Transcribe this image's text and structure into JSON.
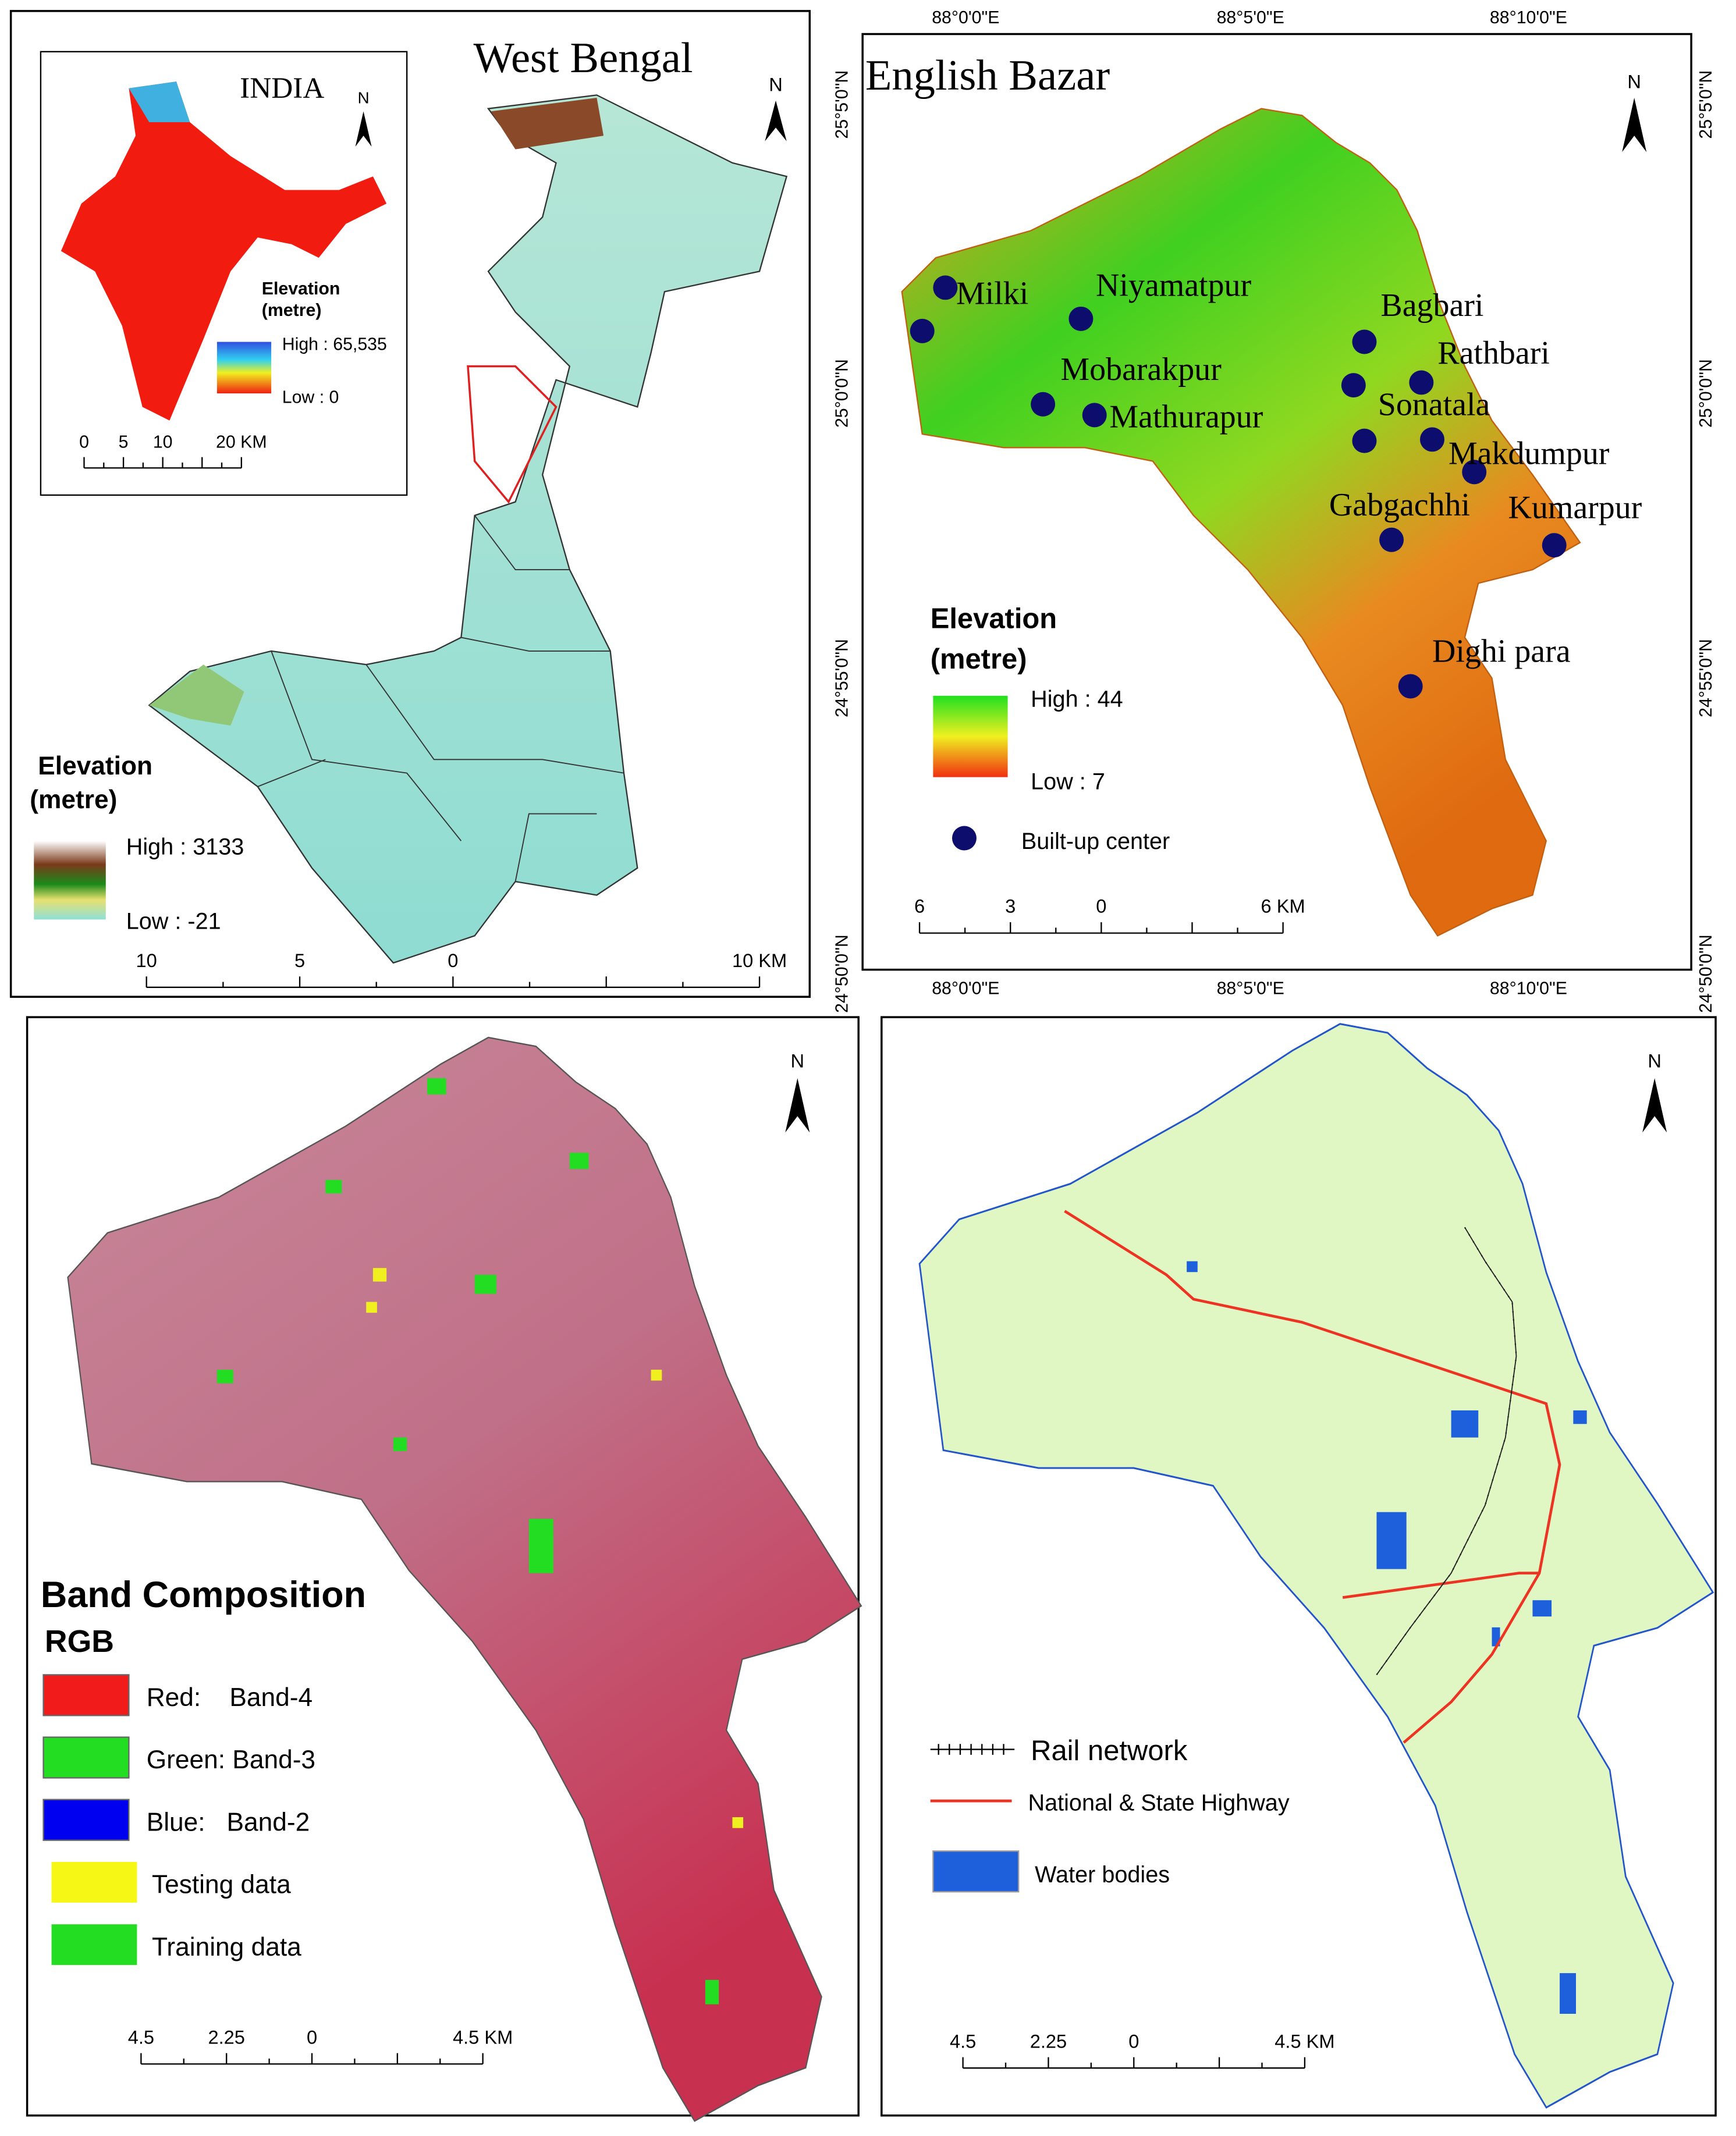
{
  "west_bengal": {
    "title": "West Bengal",
    "north": "N",
    "inset": {
      "title": "INDIA",
      "north": "N",
      "legend_title": [
        "Elevation",
        "(metre)"
      ],
      "high": "High : 65,535",
      "low": "Low : 0",
      "scale": [
        "0",
        "5",
        "10",
        "20 KM"
      ]
    },
    "legend_title": [
      "Elevation",
      "(metre)"
    ],
    "high": "High : 3133",
    "low": "Low : -21",
    "scale": [
      "10",
      "5",
      "0",
      "10 KM"
    ]
  },
  "english_bazar": {
    "title": "English Bazar",
    "north": "N",
    "top_ticks": [
      "88°0'0\"E",
      "88°5'0\"E",
      "88°10'0\"E"
    ],
    "bottom_ticks": [
      "88°0'0\"E",
      "88°5'0\"E",
      "88°10'0\"E"
    ],
    "left_ticks": [
      "25°5'0\"N",
      "25°0'0\"N",
      "24°55'0\"N",
      "24°50'0\"N"
    ],
    "right_ticks": [
      "25°5'0\"N",
      "25°0'0\"N",
      "24°55'0\"N",
      "24°50'0\"N"
    ],
    "places": [
      "Milki",
      "Niyamatpur",
      "Bagbari",
      "Rathbari",
      "Mobarakpur",
      "Mathurapur",
      "Sonatala",
      "Makdumpur",
      "Gabgachhi",
      "Kumarpur",
      "Dighi para"
    ],
    "legend_title": [
      "Elevation",
      "(metre)"
    ],
    "high": "High : 44",
    "low": "Low : 7",
    "builtup": "Built-up center",
    "scale": [
      "6",
      "3",
      "0",
      "6 KM"
    ]
  },
  "band_composition": {
    "title": "Band Composition",
    "subtitle": "RGB",
    "north": "N",
    "items": [
      "Red:    Band-4",
      "Green: Band-3",
      "Blue:   Band-2",
      "Testing data",
      "Training data"
    ],
    "scale": [
      "4.5",
      "2.25",
      "0",
      "4.5 KM"
    ]
  },
  "network": {
    "north": "N",
    "legend": [
      "Rail network",
      "National & State Highway",
      "Water bodies"
    ],
    "scale": [
      "4.5",
      "2.25",
      "0",
      "4.5 KM"
    ]
  }
}
